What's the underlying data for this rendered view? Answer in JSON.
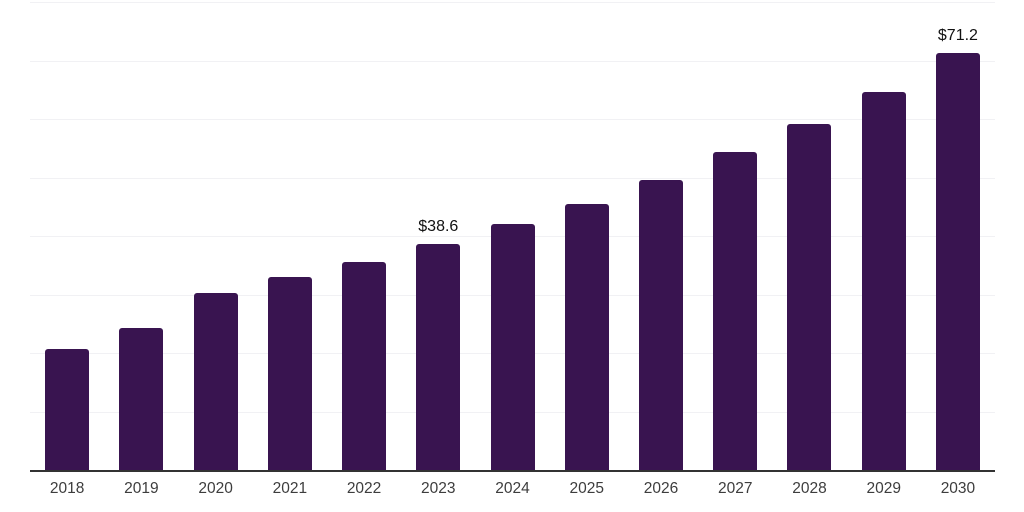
{
  "chart_data": {
    "type": "bar",
    "categories": [
      "2018",
      "2019",
      "2020",
      "2021",
      "2022",
      "2023",
      "2024",
      "2025",
      "2026",
      "2027",
      "2028",
      "2029",
      "2030"
    ],
    "values": [
      20.7,
      24.2,
      30.3,
      33.0,
      35.5,
      38.6,
      42.0,
      45.5,
      49.5,
      54.3,
      59.1,
      64.7,
      71.2
    ],
    "point_labels": {
      "2023": "$38.6",
      "2030": "$71.2"
    },
    "ylim": [
      0,
      80
    ],
    "grid_step": 10,
    "grid_on": true,
    "legend": "none",
    "bar_color": "#391450",
    "axis_line_color": "#333333",
    "gridline_color": "#f1f1f4",
    "x_label_color": "#3d3d3d",
    "data_label_color": "#111111"
  }
}
